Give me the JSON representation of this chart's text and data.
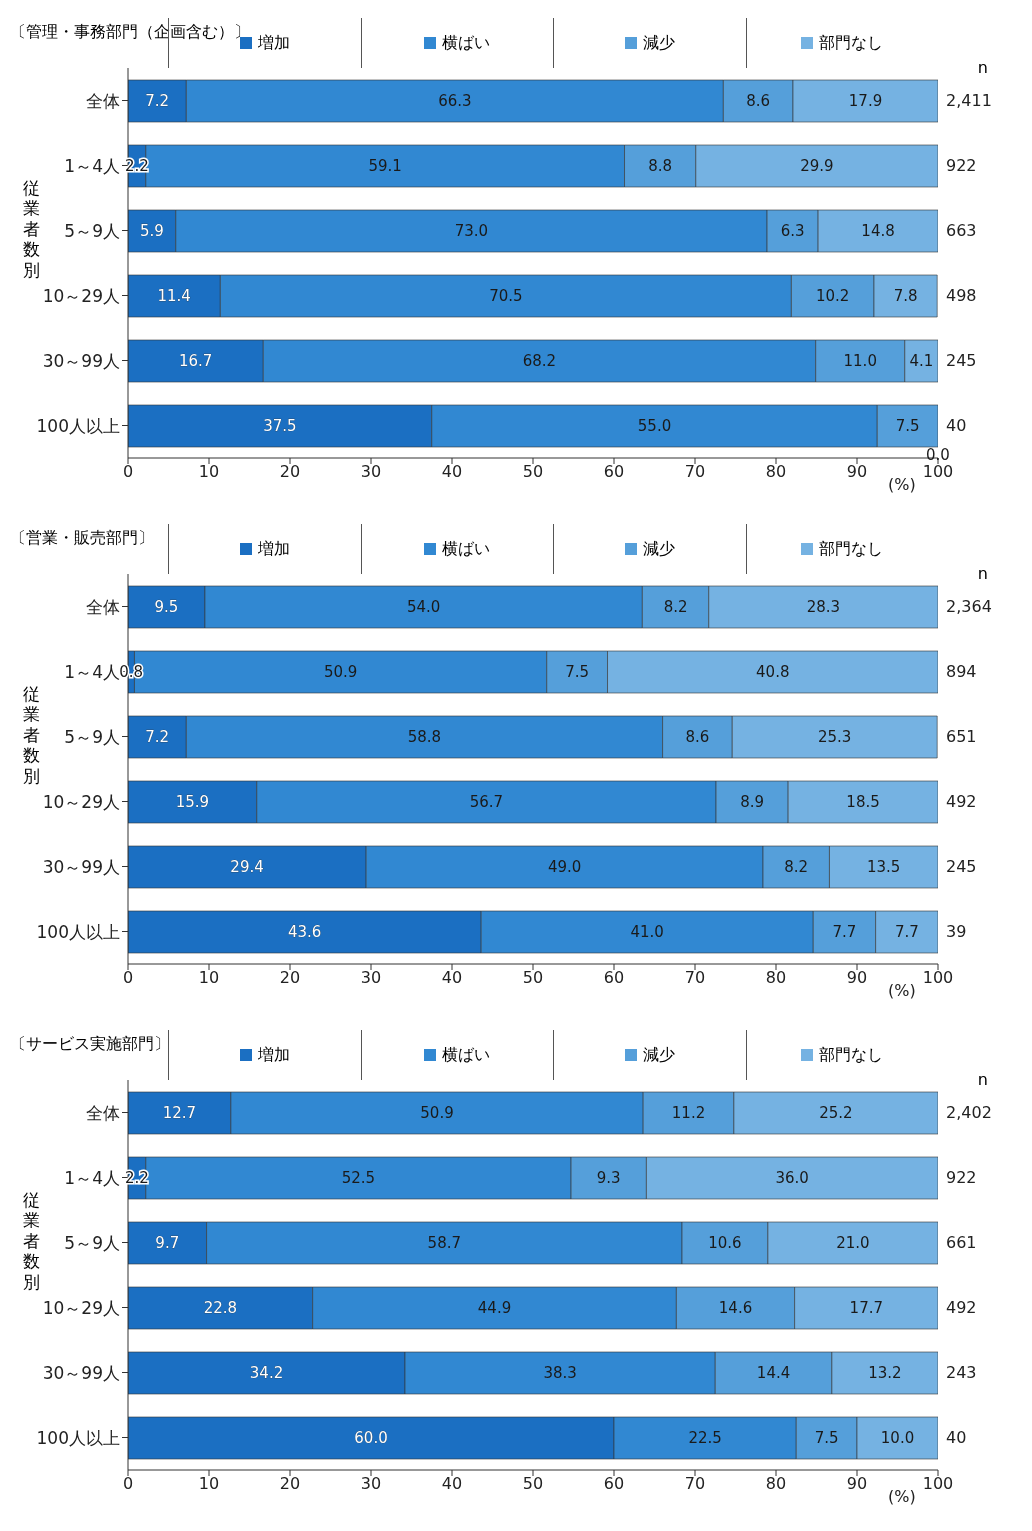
{
  "chart_data": [
    {
      "type": "bar",
      "orientation": "horizontal",
      "stacked": true,
      "title": "〔管理・事務部門（企画含む）〕",
      "ylabel": "従業者数別",
      "xlabel": "(%)",
      "legend": "top",
      "categories": [
        "全体",
        "1～4人",
        "5～9人",
        "10～29人",
        "30～99人",
        "100人以上"
      ],
      "series": [
        {
          "name": "増加",
          "color": "#1b6fc2",
          "values": [
            7.2,
            2.2,
            5.9,
            11.4,
            16.7,
            37.5
          ],
          "value_labels": [
            "7.2",
            "2.2",
            "5.9",
            "11.4",
            "16.7",
            "37.5"
          ]
        },
        {
          "name": "横ばい",
          "color": "#3188d2",
          "values": [
            66.3,
            59.1,
            73.0,
            70.5,
            68.2,
            55.0
          ],
          "value_labels": [
            "66.3",
            "59.1",
            "73.0",
            "70.5",
            "68.2",
            "55.0"
          ]
        },
        {
          "name": "減少",
          "color": "#559fda",
          "values": [
            8.6,
            8.8,
            6.3,
            10.2,
            11.0,
            7.5
          ],
          "value_labels": [
            "8.6",
            "8.8",
            "6.3",
            "10.2",
            "11.0",
            "7.5"
          ]
        },
        {
          "name": "部門なし",
          "color": "#75b2e2",
          "values": [
            17.9,
            29.9,
            14.8,
            7.8,
            4.1,
            0.0
          ],
          "value_labels": [
            "17.9",
            "29.9",
            "14.8",
            "7.8",
            "4.1",
            "0.0"
          ]
        }
      ],
      "xlim": [
        0,
        100
      ],
      "xticks": [
        0,
        10,
        20,
        30,
        40,
        50,
        60,
        70,
        80,
        90,
        100
      ],
      "annotations": [
        "n",
        "2,411",
        "922",
        "663",
        "498",
        "245",
        "40"
      ]
    },
    {
      "type": "bar",
      "orientation": "horizontal",
      "stacked": true,
      "title": "〔営業・販売部門〕",
      "ylabel": "従業者数別",
      "xlabel": "(%)",
      "legend": "top",
      "categories": [
        "全体",
        "1～4人",
        "5～9人",
        "10～29人",
        "30～99人",
        "100人以上"
      ],
      "series": [
        {
          "name": "増加",
          "color": "#1b6fc2",
          "values": [
            9.5,
            0.8,
            7.2,
            15.9,
            29.4,
            43.6
          ],
          "value_labels": [
            "9.5",
            "0.8",
            "7.2",
            "15.9",
            "29.4",
            "43.6"
          ]
        },
        {
          "name": "横ばい",
          "color": "#3188d2",
          "values": [
            54.0,
            50.9,
            58.8,
            56.7,
            49.0,
            41.0
          ],
          "value_labels": [
            "54.0",
            "50.9",
            "58.8",
            "56.7",
            "49.0",
            "41.0"
          ]
        },
        {
          "name": "減少",
          "color": "#559fda",
          "values": [
            8.2,
            7.5,
            8.6,
            8.9,
            8.2,
            7.7
          ],
          "value_labels": [
            "8.2",
            "7.5",
            "8.6",
            "8.9",
            "8.2",
            "7.7"
          ]
        },
        {
          "name": "部門なし",
          "color": "#75b2e2",
          "values": [
            28.3,
            40.8,
            25.3,
            18.5,
            13.5,
            7.7
          ],
          "value_labels": [
            "28.3",
            "40.8",
            "25.3",
            "18.5",
            "13.5",
            "7.7"
          ]
        }
      ],
      "xlim": [
        0,
        100
      ],
      "xticks": [
        0,
        10,
        20,
        30,
        40,
        50,
        60,
        70,
        80,
        90,
        100
      ],
      "annotations": [
        "n",
        "2,364",
        "894",
        "651",
        "492",
        "245",
        "39"
      ]
    },
    {
      "type": "bar",
      "orientation": "horizontal",
      "stacked": true,
      "title": "〔サービス実施部門〕",
      "ylabel": "従業者数別",
      "xlabel": "(%)",
      "legend": "top",
      "categories": [
        "全体",
        "1～4人",
        "5～9人",
        "10～29人",
        "30～99人",
        "100人以上"
      ],
      "series": [
        {
          "name": "増加",
          "color": "#1b6fc2",
          "values": [
            12.7,
            2.2,
            9.7,
            22.8,
            34.2,
            60.0
          ],
          "value_labels": [
            "12.7",
            "2.2",
            "9.7",
            "22.8",
            "34.2",
            "60.0"
          ]
        },
        {
          "name": "横ばい",
          "color": "#3188d2",
          "values": [
            50.9,
            52.5,
            58.7,
            44.9,
            38.3,
            22.5
          ],
          "value_labels": [
            "50.9",
            "52.5",
            "58.7",
            "44.9",
            "38.3",
            "22.5"
          ]
        },
        {
          "name": "減少",
          "color": "#559fda",
          "values": [
            11.2,
            9.3,
            10.6,
            14.6,
            14.4,
            7.5
          ],
          "value_labels": [
            "11.2",
            "9.3",
            "10.6",
            "14.6",
            "14.4",
            "7.5"
          ]
        },
        {
          "name": "部門なし",
          "color": "#75b2e2",
          "values": [
            25.2,
            36.0,
            21.0,
            17.7,
            13.2,
            10.0
          ],
          "value_labels": [
            "25.2",
            "36.0",
            "21.0",
            "17.7",
            "13.2",
            "10.0"
          ]
        }
      ],
      "xlim": [
        0,
        100
      ],
      "xticks": [
        0,
        10,
        20,
        30,
        40,
        50,
        60,
        70,
        80,
        90,
        100
      ],
      "annotations": [
        "n",
        "2,402",
        "922",
        "661",
        "492",
        "243",
        "40"
      ]
    }
  ]
}
